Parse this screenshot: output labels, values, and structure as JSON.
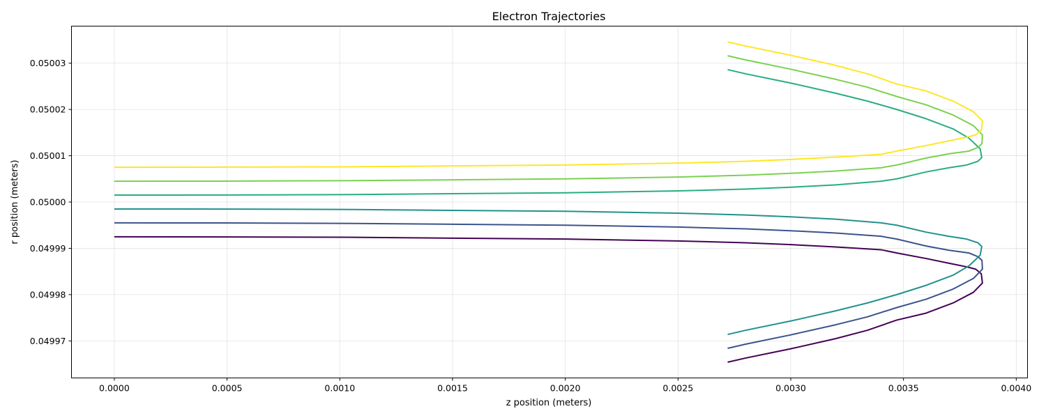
{
  "chart_data": {
    "type": "line",
    "title": "Electron Trajectories",
    "xlabel": "z position (meters)",
    "ylabel": "r position (meters)",
    "xlim": [
      -0.00019,
      0.00405
    ],
    "ylim": [
      0.049962,
      0.050038
    ],
    "xticks": [
      {
        "value": 0.0,
        "label": "0.0000"
      },
      {
        "value": 0.0005,
        "label": "0.0005"
      },
      {
        "value": 0.001,
        "label": "0.0010"
      },
      {
        "value": 0.0015,
        "label": "0.0015"
      },
      {
        "value": 0.002,
        "label": "0.0020"
      },
      {
        "value": 0.0025,
        "label": "0.0025"
      },
      {
        "value": 0.003,
        "label": "0.0030"
      },
      {
        "value": 0.0035,
        "label": "0.0035"
      },
      {
        "value": 0.004,
        "label": "0.0040"
      }
    ],
    "yticks": [
      {
        "value": 0.04997,
        "label": "0.04997"
      },
      {
        "value": 0.04998,
        "label": "0.04998"
      },
      {
        "value": 0.04999,
        "label": "0.04999"
      },
      {
        "value": 0.05,
        "label": "0.05000"
      },
      {
        "value": 0.05001,
        "label": "0.05001"
      },
      {
        "value": 0.05002,
        "label": "0.05002"
      },
      {
        "value": 0.05003,
        "label": "0.05003"
      }
    ],
    "grid": true,
    "legend": false,
    "series": [
      {
        "color": "#440154",
        "x": [
          0.0,
          0.0005,
          0.001,
          0.0015,
          0.002,
          0.0025,
          0.0028,
          0.003,
          0.0032,
          0.0034,
          0.00347,
          0.0036,
          0.0037,
          0.00378,
          0.00382,
          0.003845,
          0.00385,
          0.00381,
          0.00372,
          0.0036,
          0.00347,
          0.00334,
          0.0032,
          0.003,
          0.0028,
          0.00272
        ],
        "y": [
          0.0499925,
          0.04999245,
          0.0499924,
          0.0499922,
          0.049992,
          0.0499916,
          0.0499912,
          0.0499908,
          0.0499903,
          0.0499897,
          0.049989,
          0.0499878,
          0.0499868,
          0.049986,
          0.0499855,
          0.0499845,
          0.0499825,
          0.0499805,
          0.0499782,
          0.049976,
          0.0499745,
          0.0499723,
          0.0499705,
          0.0499683,
          0.0499663,
          0.0499654
        ]
      },
      {
        "color": "#3b528b",
        "x": [
          0.0,
          0.0005,
          0.001,
          0.0015,
          0.002,
          0.0025,
          0.0028,
          0.003,
          0.0032,
          0.0034,
          0.00347,
          0.0036,
          0.0037,
          0.00379,
          0.00383,
          0.003848,
          0.00385,
          0.00381,
          0.00372,
          0.0036,
          0.00347,
          0.00334,
          0.0032,
          0.003,
          0.0028,
          0.00272
        ],
        "y": [
          0.0499955,
          0.04999548,
          0.0499954,
          0.0499952,
          0.049995,
          0.0499946,
          0.0499942,
          0.0499938,
          0.0499933,
          0.0499926,
          0.049992,
          0.0499905,
          0.0499896,
          0.049989,
          0.0499882,
          0.0499874,
          0.0499855,
          0.0499835,
          0.0499812,
          0.049979,
          0.0499772,
          0.0499752,
          0.0499735,
          0.0499713,
          0.0499693,
          0.0499684
        ]
      },
      {
        "color": "#21918c",
        "x": [
          0.0,
          0.0005,
          0.001,
          0.0015,
          0.002,
          0.0025,
          0.0028,
          0.003,
          0.0032,
          0.0034,
          0.00347,
          0.0036,
          0.0037,
          0.00378,
          0.00383,
          0.003847,
          0.00384,
          0.00379,
          0.00372,
          0.0036,
          0.00347,
          0.00334,
          0.0032,
          0.003,
          0.0028,
          0.00272
        ],
        "y": [
          0.0499985,
          0.04999848,
          0.0499984,
          0.0499982,
          0.049998,
          0.0499976,
          0.0499972,
          0.0499968,
          0.0499963,
          0.0499955,
          0.049995,
          0.0499935,
          0.0499926,
          0.049992,
          0.0499912,
          0.0499904,
          0.0499885,
          0.0499862,
          0.0499842,
          0.049982,
          0.04998,
          0.0499782,
          0.0499765,
          0.0499743,
          0.0499723,
          0.0499714
        ]
      },
      {
        "color": "#27ad81",
        "x": [
          0.0,
          0.0005,
          0.001,
          0.0015,
          0.002,
          0.0025,
          0.0028,
          0.003,
          0.0032,
          0.0034,
          0.00347,
          0.0036,
          0.0037,
          0.00378,
          0.00383,
          0.003847,
          0.00384,
          0.00379,
          0.00372,
          0.0036,
          0.00347,
          0.00334,
          0.0032,
          0.003,
          0.0028,
          0.00272
        ],
        "y": [
          0.0500015,
          0.05000152,
          0.0500016,
          0.0500018,
          0.050002,
          0.0500024,
          0.0500028,
          0.0500032,
          0.0500037,
          0.0500045,
          0.050005,
          0.0500065,
          0.0500074,
          0.050008,
          0.0500088,
          0.0500096,
          0.0500115,
          0.0500138,
          0.0500158,
          0.050018,
          0.05002,
          0.0500218,
          0.0500235,
          0.0500257,
          0.0500277,
          0.0500286
        ]
      },
      {
        "color": "#7ad151",
        "x": [
          0.0,
          0.0005,
          0.001,
          0.0015,
          0.002,
          0.0025,
          0.0028,
          0.003,
          0.0032,
          0.0034,
          0.00347,
          0.0036,
          0.0037,
          0.00379,
          0.00383,
          0.003848,
          0.00385,
          0.00381,
          0.00372,
          0.0036,
          0.00347,
          0.00334,
          0.0032,
          0.003,
          0.0028,
          0.00272
        ],
        "y": [
          0.0500045,
          0.05000452,
          0.0500046,
          0.0500048,
          0.050005,
          0.0500054,
          0.0500058,
          0.0500062,
          0.0500067,
          0.0500074,
          0.050008,
          0.0500095,
          0.0500104,
          0.050011,
          0.0500118,
          0.0500126,
          0.0500145,
          0.0500165,
          0.0500188,
          0.050021,
          0.0500228,
          0.0500248,
          0.0500265,
          0.0500287,
          0.0500307,
          0.0500316
        ]
      },
      {
        "color": "#fde725",
        "x": [
          0.0,
          0.0005,
          0.001,
          0.0015,
          0.002,
          0.0025,
          0.0028,
          0.003,
          0.0032,
          0.0034,
          0.00347,
          0.0036,
          0.0037,
          0.00378,
          0.00382,
          0.003845,
          0.00385,
          0.00381,
          0.00372,
          0.0036,
          0.00347,
          0.00334,
          0.0032,
          0.003,
          0.0028,
          0.00272
        ],
        "y": [
          0.0500075,
          0.05000755,
          0.0500076,
          0.0500078,
          0.050008,
          0.0500084,
          0.0500088,
          0.0500092,
          0.0500097,
          0.0500103,
          0.050011,
          0.0500122,
          0.0500132,
          0.050014,
          0.0500145,
          0.0500155,
          0.0500175,
          0.0500195,
          0.0500218,
          0.050024,
          0.0500255,
          0.0500277,
          0.0500295,
          0.0500317,
          0.0500337,
          0.0500346
        ]
      }
    ]
  }
}
